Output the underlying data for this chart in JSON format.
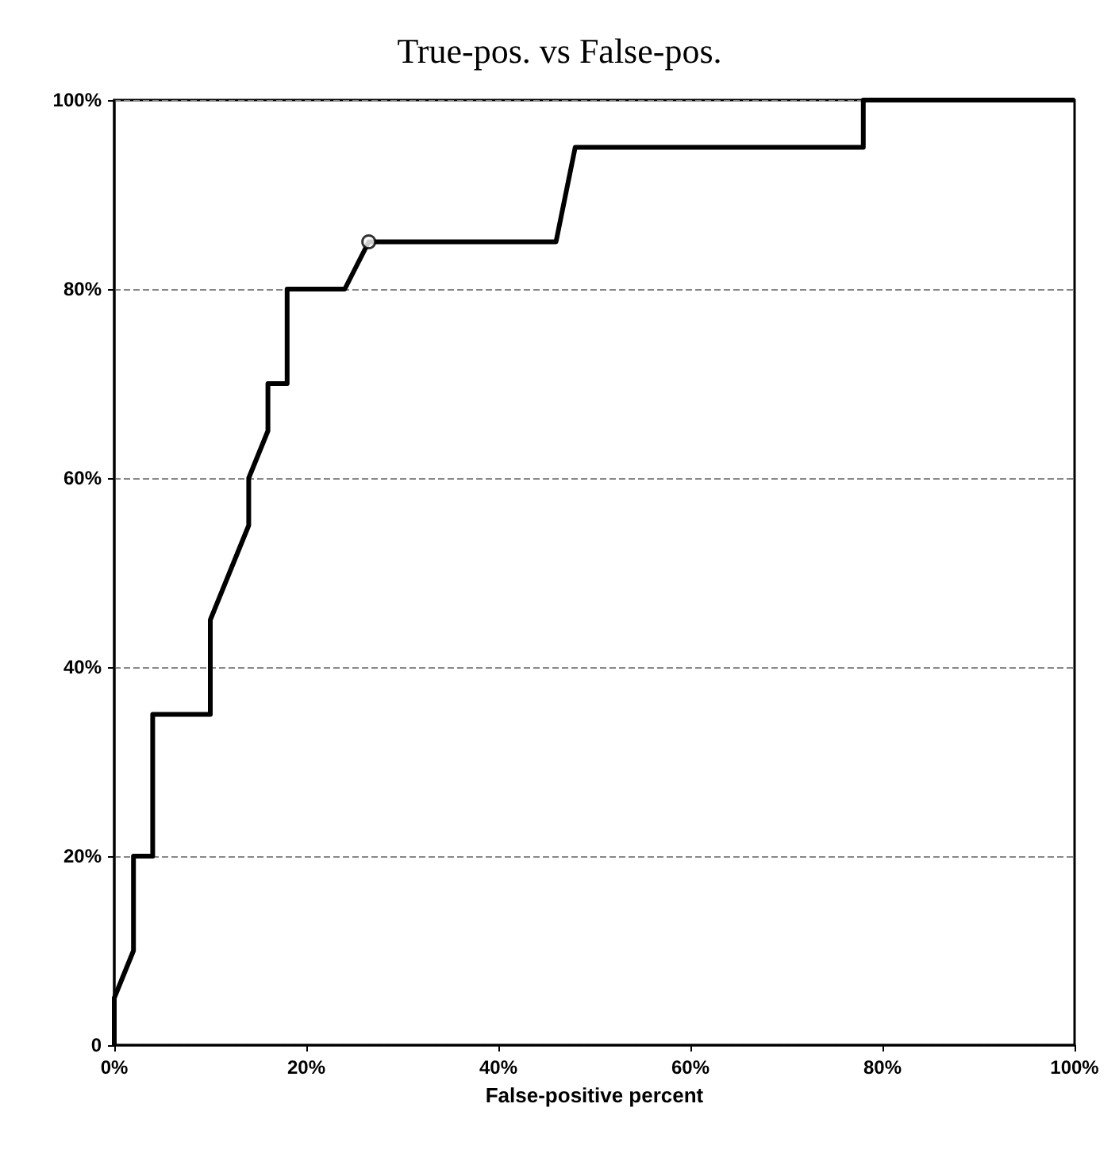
{
  "chart_data": {
    "type": "line",
    "title": "True-pos. vs False-pos.",
    "xlabel": "False-positive percent",
    "series": [
      {
        "color": "#000000",
        "marker": "none",
        "x": [
          0,
          0,
          2,
          2,
          4,
          4,
          10,
          10,
          12,
          14,
          14,
          16,
          16,
          18,
          18,
          24,
          26.5,
          46,
          48,
          78,
          78,
          100
        ],
        "values": [
          0,
          5,
          10,
          20,
          20,
          35,
          35,
          45,
          50,
          55,
          60,
          65,
          70,
          70,
          80,
          80,
          85,
          85,
          95,
          95,
          100,
          100
        ]
      },
      {
        "type": "scatter",
        "color": "#000000",
        "marker": "circle",
        "x": [
          26.5
        ],
        "values": [
          85
        ]
      }
    ],
    "xlim": [
      0,
      100
    ],
    "ylim": [
      0,
      100
    ],
    "xticks": [
      {
        "value": 0,
        "label": "0%"
      },
      {
        "value": 20,
        "label": "20%"
      },
      {
        "value": 40,
        "label": "40%"
      },
      {
        "value": 60,
        "label": "60%"
      },
      {
        "value": 80,
        "label": "80%"
      },
      {
        "value": 100,
        "label": "100%"
      }
    ],
    "yticks": [
      0,
      {
        "value": 20,
        "label": "20%"
      },
      {
        "value": 40,
        "label": "40%"
      },
      {
        "value": 60,
        "label": "60%"
      },
      {
        "value": 80,
        "label": "80%"
      },
      {
        "value": 100,
        "label": "100%"
      }
    ],
    "grid": "y"
  }
}
